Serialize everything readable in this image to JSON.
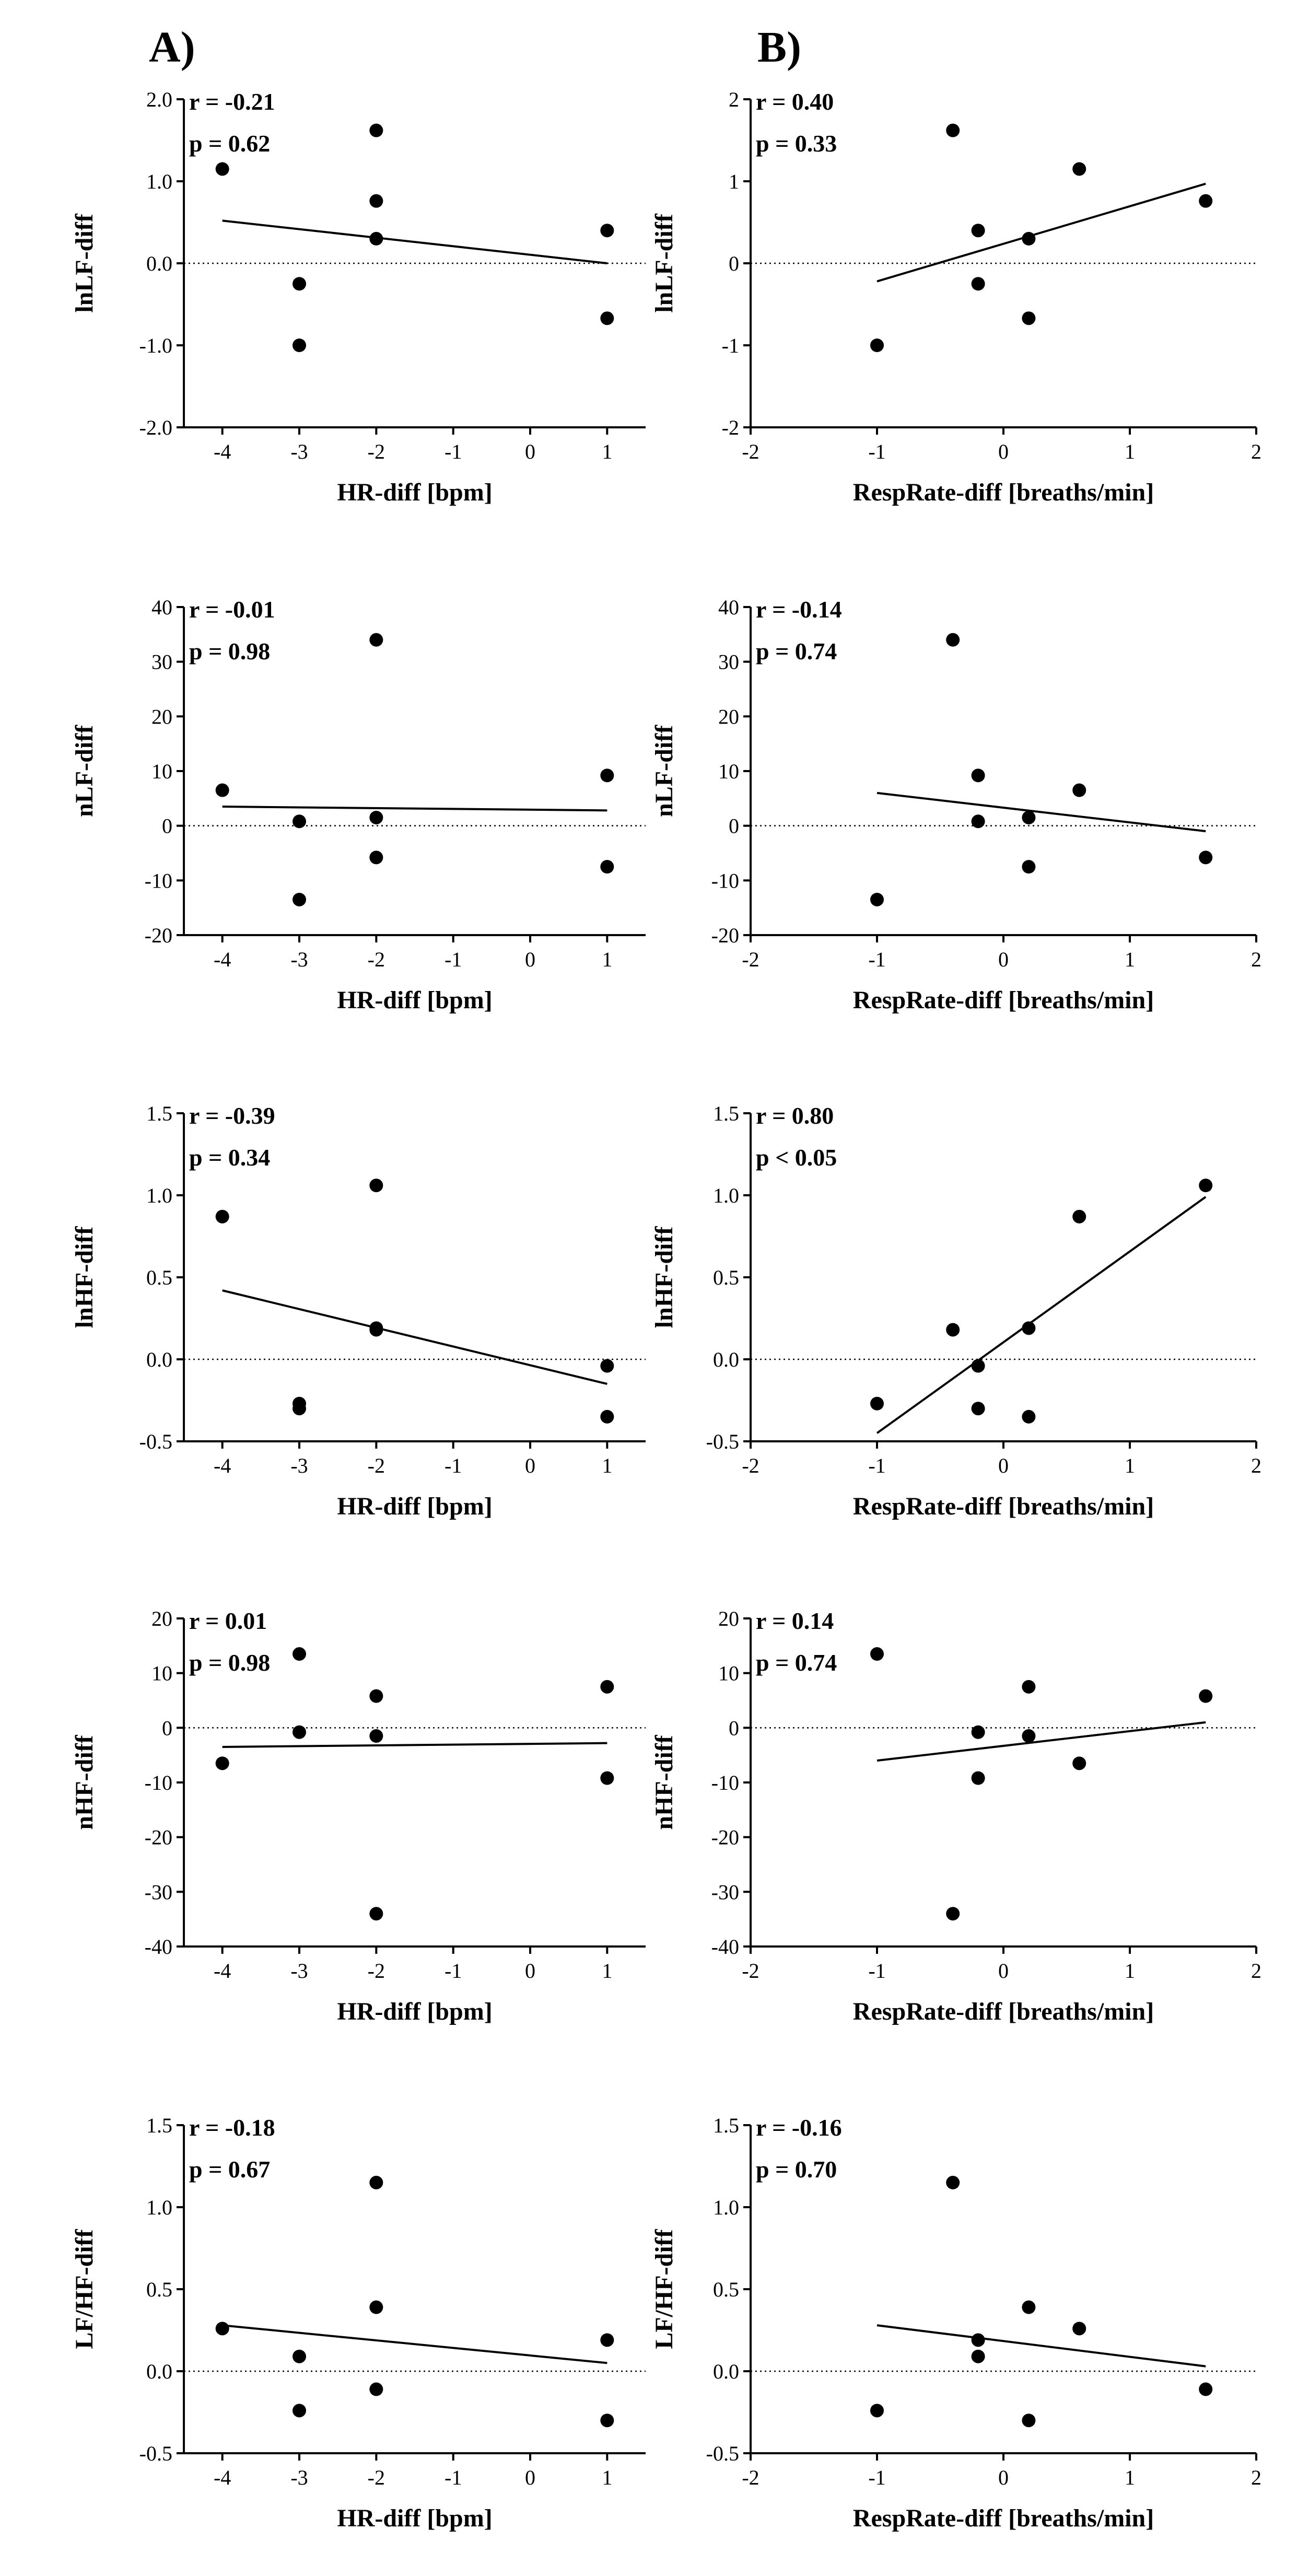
{
  "figure": {
    "panel_labels": [
      "A)",
      "B)"
    ]
  },
  "chart_data": [
    {
      "type": "scatter",
      "panel": "A",
      "row": 0,
      "xlabel": "HR-diff [bpm]",
      "ylabel": "lnLF-diff",
      "xlim": [
        -4.5,
        1.5
      ],
      "xticks": [
        -4,
        -3,
        -2,
        -1,
        0,
        1
      ],
      "xtick_labels": [
        "-4",
        "-3",
        "-2",
        "-1",
        "0",
        "1"
      ],
      "ylim": [
        -2,
        2
      ],
      "yticks": [
        -2,
        -1,
        0,
        1,
        2
      ],
      "ytick_labels": [
        "-2.0",
        "-1.0",
        "0.0",
        "1.0",
        "2.0"
      ],
      "points": [
        [
          -4,
          1.15
        ],
        [
          -3,
          -0.25
        ],
        [
          -3,
          -1.0
        ],
        [
          -2,
          1.62
        ],
        [
          -2,
          0.76
        ],
        [
          -2,
          0.3
        ],
        [
          1,
          0.4
        ],
        [
          1,
          -0.67
        ]
      ],
      "fit": [
        [
          -4,
          0.52
        ],
        [
          1,
          0.0
        ]
      ],
      "zero_line": true,
      "stats": [
        "r = -0.21",
        "p = 0.62"
      ]
    },
    {
      "type": "scatter",
      "panel": "B",
      "row": 0,
      "xlabel": "RespRate-diff [breaths/min]",
      "ylabel": "lnLF-diff",
      "xlim": [
        -2,
        2
      ],
      "xticks": [
        -2,
        -1,
        0,
        1,
        2
      ],
      "xtick_labels": [
        "-2",
        "-1",
        "0",
        "1",
        "2"
      ],
      "ylim": [
        -2,
        2
      ],
      "yticks": [
        -2,
        -1,
        0,
        1,
        2
      ],
      "ytick_labels": [
        "-2",
        "-1",
        "0",
        "1",
        "2"
      ],
      "points": [
        [
          -1,
          -1.0
        ],
        [
          -0.4,
          1.62
        ],
        [
          -0.2,
          0.4
        ],
        [
          -0.2,
          -0.25
        ],
        [
          0.2,
          0.3
        ],
        [
          0.2,
          -0.67
        ],
        [
          0.6,
          1.15
        ],
        [
          1.6,
          0.76
        ]
      ],
      "fit": [
        [
          -1,
          -0.22
        ],
        [
          1.6,
          0.97
        ]
      ],
      "zero_line": true,
      "stats": [
        "r = 0.40",
        "p = 0.33"
      ]
    },
    {
      "type": "scatter",
      "panel": "A",
      "row": 1,
      "xlabel": "HR-diff [bpm]",
      "ylabel": "nLF-diff",
      "xlim": [
        -4.5,
        1.5
      ],
      "xticks": [
        -4,
        -3,
        -2,
        -1,
        0,
        1
      ],
      "xtick_labels": [
        "-4",
        "-3",
        "-2",
        "-1",
        "0",
        "1"
      ],
      "ylim": [
        -20,
        40
      ],
      "yticks": [
        -20,
        -10,
        0,
        10,
        20,
        30,
        40
      ],
      "ytick_labels": [
        "-20",
        "-10",
        "0",
        "10",
        "20",
        "30",
        "40"
      ],
      "points": [
        [
          -4,
          6.5
        ],
        [
          -3,
          0.8
        ],
        [
          -3,
          -13.5
        ],
        [
          -2,
          34
        ],
        [
          -2,
          1.5
        ],
        [
          -2,
          -5.8
        ],
        [
          1,
          9.2
        ],
        [
          1,
          -7.5
        ]
      ],
      "fit": [
        [
          -4,
          3.5
        ],
        [
          1,
          2.8
        ]
      ],
      "zero_line": true,
      "stats": [
        "r = -0.01",
        "p = 0.98"
      ]
    },
    {
      "type": "scatter",
      "panel": "B",
      "row": 1,
      "xlabel": "RespRate-diff [breaths/min]",
      "ylabel": "nLF-diff",
      "xlim": [
        -2,
        2
      ],
      "xticks": [
        -2,
        -1,
        0,
        1,
        2
      ],
      "xtick_labels": [
        "-2",
        "-1",
        "0",
        "1",
        "2"
      ],
      "ylim": [
        -20,
        40
      ],
      "yticks": [
        -20,
        -10,
        0,
        10,
        20,
        30,
        40
      ],
      "ytick_labels": [
        "-20",
        "-10",
        "0",
        "10",
        "20",
        "30",
        "40"
      ],
      "points": [
        [
          -1,
          -13.5
        ],
        [
          -0.4,
          34
        ],
        [
          -0.2,
          9.2
        ],
        [
          -0.2,
          0.8
        ],
        [
          0.2,
          1.5
        ],
        [
          0.2,
          -7.5
        ],
        [
          0.6,
          6.5
        ],
        [
          1.6,
          -5.8
        ]
      ],
      "fit": [
        [
          -1,
          6.0
        ],
        [
          1.6,
          -1.0
        ]
      ],
      "zero_line": true,
      "stats": [
        "r = -0.14",
        "p = 0.74"
      ]
    },
    {
      "type": "scatter",
      "panel": "A",
      "row": 2,
      "xlabel": "HR-diff [bpm]",
      "ylabel": "lnHF-diff",
      "xlim": [
        -4.5,
        1.5
      ],
      "xticks": [
        -4,
        -3,
        -2,
        -1,
        0,
        1
      ],
      "xtick_labels": [
        "-4",
        "-3",
        "-2",
        "-1",
        "0",
        "1"
      ],
      "ylim": [
        -0.5,
        1.5
      ],
      "yticks": [
        -0.5,
        0,
        0.5,
        1,
        1.5
      ],
      "ytick_labels": [
        "-0.5",
        "0.0",
        "0.5",
        "1.0",
        "1.5"
      ],
      "points": [
        [
          -4,
          0.87
        ],
        [
          -3,
          -0.27
        ],
        [
          -3,
          -0.3
        ],
        [
          -2,
          1.06
        ],
        [
          -2,
          0.19
        ],
        [
          -2,
          0.18
        ],
        [
          1,
          -0.04
        ],
        [
          1,
          -0.35
        ]
      ],
      "fit": [
        [
          -4,
          0.42
        ],
        [
          1,
          -0.15
        ]
      ],
      "zero_line": true,
      "stats": [
        "r = -0.39",
        "p = 0.34"
      ]
    },
    {
      "type": "scatter",
      "panel": "B",
      "row": 2,
      "xlabel": "RespRate-diff [breaths/min]",
      "ylabel": "lnHF-diff",
      "xlim": [
        -2,
        2
      ],
      "xticks": [
        -2,
        -1,
        0,
        1,
        2
      ],
      "xtick_labels": [
        "-2",
        "-1",
        "0",
        "1",
        "2"
      ],
      "ylim": [
        -0.5,
        1.5
      ],
      "yticks": [
        -0.5,
        0,
        0.5,
        1,
        1.5
      ],
      "ytick_labels": [
        "-0.5",
        "0.0",
        "0.5",
        "1.0",
        "1.5"
      ],
      "points": [
        [
          -1,
          -0.27
        ],
        [
          -0.4,
          0.18
        ],
        [
          -0.2,
          -0.04
        ],
        [
          -0.2,
          -0.3
        ],
        [
          0.2,
          0.19
        ],
        [
          0.2,
          -0.35
        ],
        [
          0.6,
          0.87
        ],
        [
          1.6,
          1.06
        ]
      ],
      "fit": [
        [
          -1,
          -0.45
        ],
        [
          1.6,
          0.99
        ]
      ],
      "zero_line": true,
      "stats": [
        "r = 0.80",
        "p < 0.05"
      ]
    },
    {
      "type": "scatter",
      "panel": "A",
      "row": 3,
      "xlabel": "HR-diff [bpm]",
      "ylabel": "nHF-diff",
      "xlim": [
        -4.5,
        1.5
      ],
      "xticks": [
        -4,
        -3,
        -2,
        -1,
        0,
        1
      ],
      "xtick_labels": [
        "-4",
        "-3",
        "-2",
        "-1",
        "0",
        "1"
      ],
      "ylim": [
        -40,
        20
      ],
      "yticks": [
        -40,
        -30,
        -20,
        -10,
        0,
        10,
        20
      ],
      "ytick_labels": [
        "-40",
        "-30",
        "-20",
        "-10",
        "0",
        "10",
        "20"
      ],
      "points": [
        [
          -4,
          -6.5
        ],
        [
          -3,
          13.5
        ],
        [
          -3,
          -0.8
        ],
        [
          -2,
          5.8
        ],
        [
          -2,
          -1.5
        ],
        [
          -2,
          -34
        ],
        [
          1,
          7.5
        ],
        [
          1,
          -9.2
        ]
      ],
      "fit": [
        [
          -4,
          -3.5
        ],
        [
          1,
          -2.8
        ]
      ],
      "zero_line": true,
      "stats": [
        "r = 0.01",
        "p = 0.98"
      ]
    },
    {
      "type": "scatter",
      "panel": "B",
      "row": 3,
      "xlabel": "RespRate-diff [breaths/min]",
      "ylabel": "nHF-diff",
      "xlim": [
        -2,
        2
      ],
      "xticks": [
        -2,
        -1,
        0,
        1,
        2
      ],
      "xtick_labels": [
        "-2",
        "-1",
        "0",
        "1",
        "2"
      ],
      "ylim": [
        -40,
        20
      ],
      "yticks": [
        -40,
        -30,
        -20,
        -10,
        0,
        10,
        20
      ],
      "ytick_labels": [
        "-40",
        "-30",
        "-20",
        "-10",
        "0",
        "10",
        "20"
      ],
      "points": [
        [
          -1,
          13.5
        ],
        [
          -0.4,
          -34
        ],
        [
          -0.2,
          -0.8
        ],
        [
          -0.2,
          -9.2
        ],
        [
          0.2,
          7.5
        ],
        [
          0.2,
          -1.5
        ],
        [
          0.6,
          -6.5
        ],
        [
          1.6,
          5.8
        ]
      ],
      "fit": [
        [
          -1,
          -6.0
        ],
        [
          1.6,
          1.0
        ]
      ],
      "zero_line": true,
      "stats": [
        "r = 0.14",
        "p = 0.74"
      ]
    },
    {
      "type": "scatter",
      "panel": "A",
      "row": 4,
      "xlabel": "HR-diff [bpm]",
      "ylabel": "LF/HF-diff",
      "xlim": [
        -4.5,
        1.5
      ],
      "xticks": [
        -4,
        -3,
        -2,
        -1,
        0,
        1
      ],
      "xtick_labels": [
        "-4",
        "-3",
        "-2",
        "-1",
        "0",
        "1"
      ],
      "ylim": [
        -0.5,
        1.5
      ],
      "yticks": [
        -0.5,
        0,
        0.5,
        1,
        1.5
      ],
      "ytick_labels": [
        "-0.5",
        "0.0",
        "0.5",
        "1.0",
        "1.5"
      ],
      "points": [
        [
          -4,
          0.26
        ],
        [
          -3,
          0.09
        ],
        [
          -3,
          -0.24
        ],
        [
          -2,
          1.15
        ],
        [
          -2,
          0.39
        ],
        [
          -2,
          -0.11
        ],
        [
          1,
          0.19
        ],
        [
          1,
          -0.3
        ]
      ],
      "fit": [
        [
          -4,
          0.28
        ],
        [
          1,
          0.05
        ]
      ],
      "zero_line": true,
      "stats": [
        "r = -0.18",
        "p = 0.67"
      ]
    },
    {
      "type": "scatter",
      "panel": "B",
      "row": 4,
      "xlabel": "RespRate-diff [breaths/min]",
      "ylabel": "LF/HF-diff",
      "xlim": [
        -2,
        2
      ],
      "xticks": [
        -2,
        -1,
        0,
        1,
        2
      ],
      "xtick_labels": [
        "-2",
        "-1",
        "0",
        "1",
        "2"
      ],
      "ylim": [
        -0.5,
        1.5
      ],
      "yticks": [
        -0.5,
        0,
        0.5,
        1,
        1.5
      ],
      "ytick_labels": [
        "-0.5",
        "0.0",
        "0.5",
        "1.0",
        "1.5"
      ],
      "points": [
        [
          -1,
          -0.24
        ],
        [
          -0.4,
          1.15
        ],
        [
          -0.2,
          0.19
        ],
        [
          -0.2,
          0.09
        ],
        [
          0.2,
          0.39
        ],
        [
          0.2,
          -0.3
        ],
        [
          0.6,
          0.26
        ],
        [
          1.6,
          -0.11
        ]
      ],
      "fit": [
        [
          -1,
          0.28
        ],
        [
          1.6,
          0.03
        ]
      ],
      "zero_line": true,
      "stats": [
        "r = -0.16",
        "p = 0.70"
      ]
    }
  ]
}
